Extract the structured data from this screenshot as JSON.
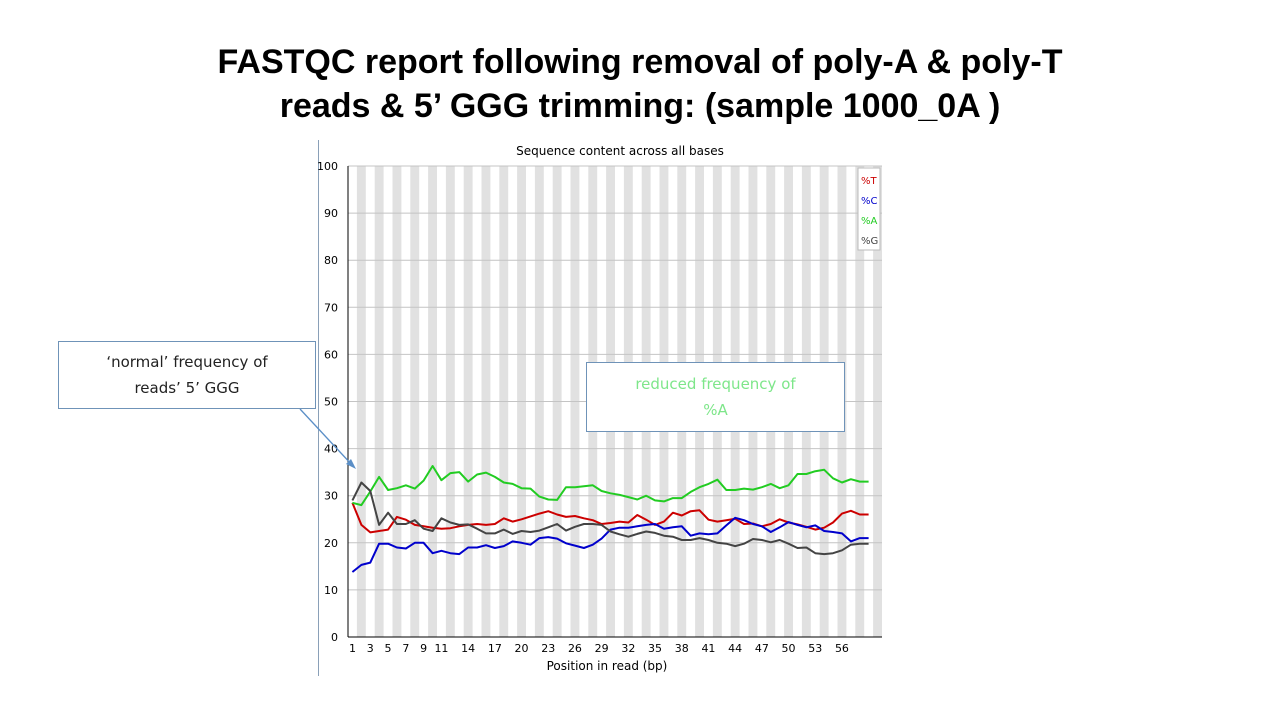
{
  "slide": {
    "title_line1": "FASTQC report following removal of poly-A & poly-T",
    "title_line2": "reads & 5’ GGG trimming: (sample 1000_0A )"
  },
  "callouts": {
    "left_line1": "‘normal’ frequency of",
    "left_line2": "reads’ 5’ GGG",
    "right_line1": "reduced frequency of",
    "right_line2": "%A"
  },
  "chart_data": {
    "type": "line",
    "title": "Sequence content across all bases",
    "xlabel": "Position in read (bp)",
    "ylabel": "",
    "ylim": [
      0,
      100
    ],
    "yticks": [
      0,
      10,
      20,
      30,
      40,
      50,
      60,
      70,
      80,
      90,
      100
    ],
    "xlim": [
      1,
      60
    ],
    "xticks": [
      1,
      3,
      5,
      7,
      9,
      11,
      14,
      17,
      20,
      23,
      26,
      29,
      32,
      35,
      38,
      41,
      44,
      47,
      50,
      53,
      56
    ],
    "grid": true,
    "legend_position": "top-right",
    "series": [
      {
        "name": "%T",
        "color": "#cc0000",
        "values": [
          28.5,
          23.8,
          22.2,
          22.5,
          22.8,
          25.5,
          24.9,
          23.8,
          23.5,
          23.2,
          23.0,
          23.1,
          23.5,
          23.8,
          24.0,
          23.8,
          24.0,
          25.2,
          24.5,
          25.0,
          25.6,
          26.2,
          26.7,
          26.0,
          25.5,
          25.7,
          25.2,
          24.8,
          24.0,
          24.2,
          24.5,
          24.3,
          25.9,
          24.9,
          23.8,
          24.5,
          26.4,
          25.8,
          26.7,
          26.9,
          24.9,
          24.5,
          24.8,
          25.1,
          24.0,
          24.1,
          23.5,
          24.0,
          25.0,
          24.3,
          23.9,
          23.4,
          22.8,
          23.2,
          24.3,
          26.2,
          26.8,
          26.0,
          26.0
        ]
      },
      {
        "name": "%C",
        "color": "#0000cc",
        "values": [
          13.8,
          15.3,
          15.8,
          19.8,
          19.8,
          19.0,
          18.8,
          20.0,
          20.0,
          17.8,
          18.3,
          17.8,
          17.6,
          19.0,
          19.0,
          19.5,
          18.9,
          19.3,
          20.3,
          20.0,
          19.6,
          21.0,
          21.2,
          20.9,
          19.9,
          19.4,
          18.9,
          19.6,
          20.9,
          22.8,
          23.2,
          23.2,
          23.5,
          23.8,
          24.0,
          23.0,
          23.3,
          23.5,
          21.5,
          22.0,
          21.8,
          22.0,
          23.7,
          25.3,
          24.8,
          24.0,
          23.5,
          22.3,
          23.3,
          24.4,
          23.8,
          23.3,
          23.7,
          22.5,
          22.3,
          22.0,
          20.3,
          21.0,
          21.0
        ]
      },
      {
        "name": "%A",
        "color": "#22cc22",
        "values": [
          28.5,
          28.0,
          30.9,
          34.0,
          31.2,
          31.6,
          32.2,
          31.5,
          33.2,
          36.3,
          33.3,
          34.8,
          35.0,
          33.0,
          34.5,
          34.9,
          34.0,
          32.8,
          32.5,
          31.6,
          31.5,
          29.8,
          29.2,
          29.1,
          31.8,
          31.8,
          32.0,
          32.2,
          31.0,
          30.5,
          30.2,
          29.7,
          29.2,
          30.0,
          29.0,
          28.8,
          29.5,
          29.5,
          30.8,
          31.8,
          32.5,
          33.4,
          31.2,
          31.2,
          31.5,
          31.3,
          31.8,
          32.5,
          31.6,
          32.2,
          34.6,
          34.6,
          35.2,
          35.5,
          33.7,
          32.8,
          33.5,
          33.0,
          33.0
        ]
      },
      {
        "name": "%G",
        "color": "#444444",
        "values": [
          29.0,
          32.8,
          31.0,
          23.8,
          26.4,
          24.0,
          24.0,
          24.8,
          23.0,
          22.5,
          25.2,
          24.3,
          23.8,
          23.9,
          23.0,
          22.0,
          22.0,
          22.8,
          21.9,
          22.5,
          22.3,
          22.6,
          23.3,
          24.0,
          22.6,
          23.4,
          24.0,
          24.0,
          23.8,
          22.4,
          21.8,
          21.3,
          21.9,
          22.4,
          22.1,
          21.5,
          21.3,
          20.6,
          20.6,
          21.0,
          20.6,
          20.0,
          19.8,
          19.3,
          19.8,
          20.8,
          20.6,
          20.1,
          20.6,
          19.8,
          18.9,
          19.0,
          17.8,
          17.6,
          17.8,
          18.4,
          19.6,
          19.8,
          19.8
        ]
      }
    ]
  }
}
